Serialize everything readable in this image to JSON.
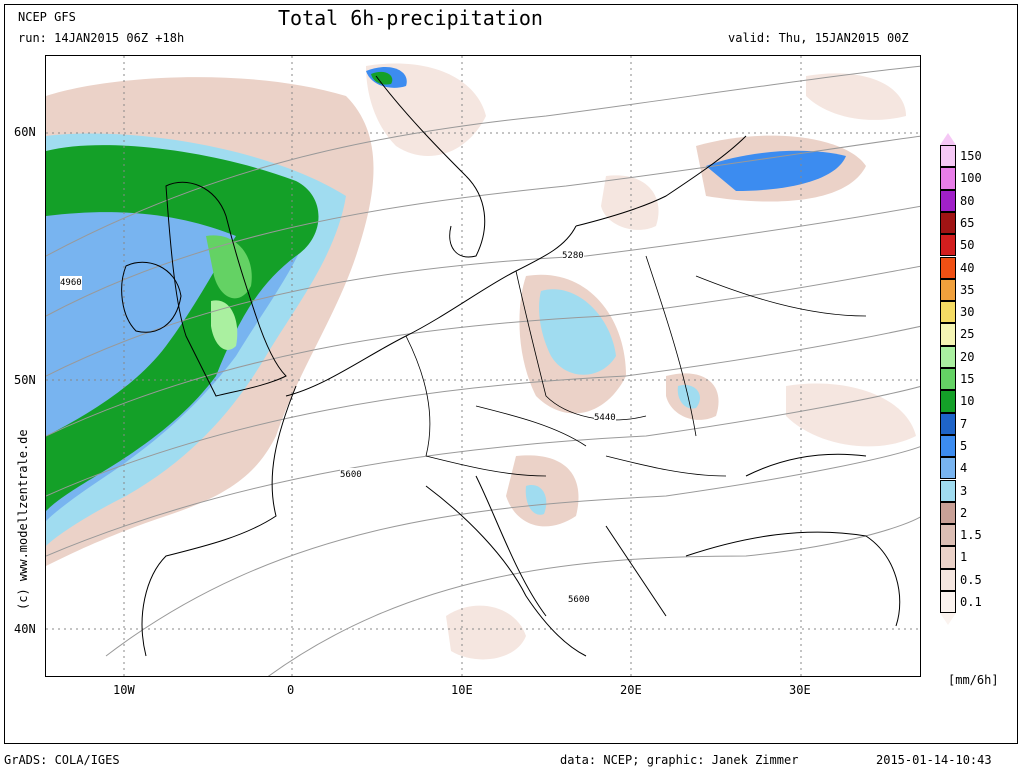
{
  "header": {
    "model": "NCEP GFS",
    "run": "run: 14JAN2015 06Z +18h",
    "title": "Total 6h-precipitation",
    "valid": "valid: Thu, 15JAN2015 00Z"
  },
  "axes": {
    "lat_labels": [
      "60N",
      "50N",
      "40N"
    ],
    "lon_labels": [
      "10W",
      "0",
      "10E",
      "20E",
      "30E"
    ]
  },
  "contour_labels": [
    "4960",
    "5280",
    "5440",
    "5600",
    "5600"
  ],
  "legend": {
    "unit": "[mm/6h]",
    "levels": [
      {
        "label": "150",
        "color": "#f5c8f5"
      },
      {
        "label": "100",
        "color": "#e87ee8"
      },
      {
        "label": "80",
        "color": "#a020c8"
      },
      {
        "label": "65",
        "color": "#a01414"
      },
      {
        "label": "50",
        "color": "#d21e1e"
      },
      {
        "label": "40",
        "color": "#f05014"
      },
      {
        "label": "35",
        "color": "#f0a03c"
      },
      {
        "label": "30",
        "color": "#f5dc64"
      },
      {
        "label": "25",
        "color": "#f5f5b4"
      },
      {
        "label": "20",
        "color": "#aaf0a0"
      },
      {
        "label": "15",
        "color": "#64d264"
      },
      {
        "label": "10",
        "color": "#14a028"
      },
      {
        "label": "7",
        "color": "#1e64c8"
      },
      {
        "label": "5",
        "color": "#3c8cf0"
      },
      {
        "label": "4",
        "color": "#78b4f0"
      },
      {
        "label": "3",
        "color": "#a0dcf0"
      },
      {
        "label": "2",
        "color": "#c8a096"
      },
      {
        "label": "1.5",
        "color": "#dcbeb4"
      },
      {
        "label": "1",
        "color": "#ebd2c8"
      },
      {
        "label": "0.5",
        "color": "#f5e6e0"
      },
      {
        "label": "0.1",
        "color": "#fbf3ef"
      }
    ]
  },
  "footer": {
    "software": "GrADS: COLA/IGES",
    "credits": "data: NCEP; graphic: Janek Zimmer",
    "timestamp": "2015-01-14-10:43",
    "copyright": "(c) www.modellzentrale.de"
  }
}
